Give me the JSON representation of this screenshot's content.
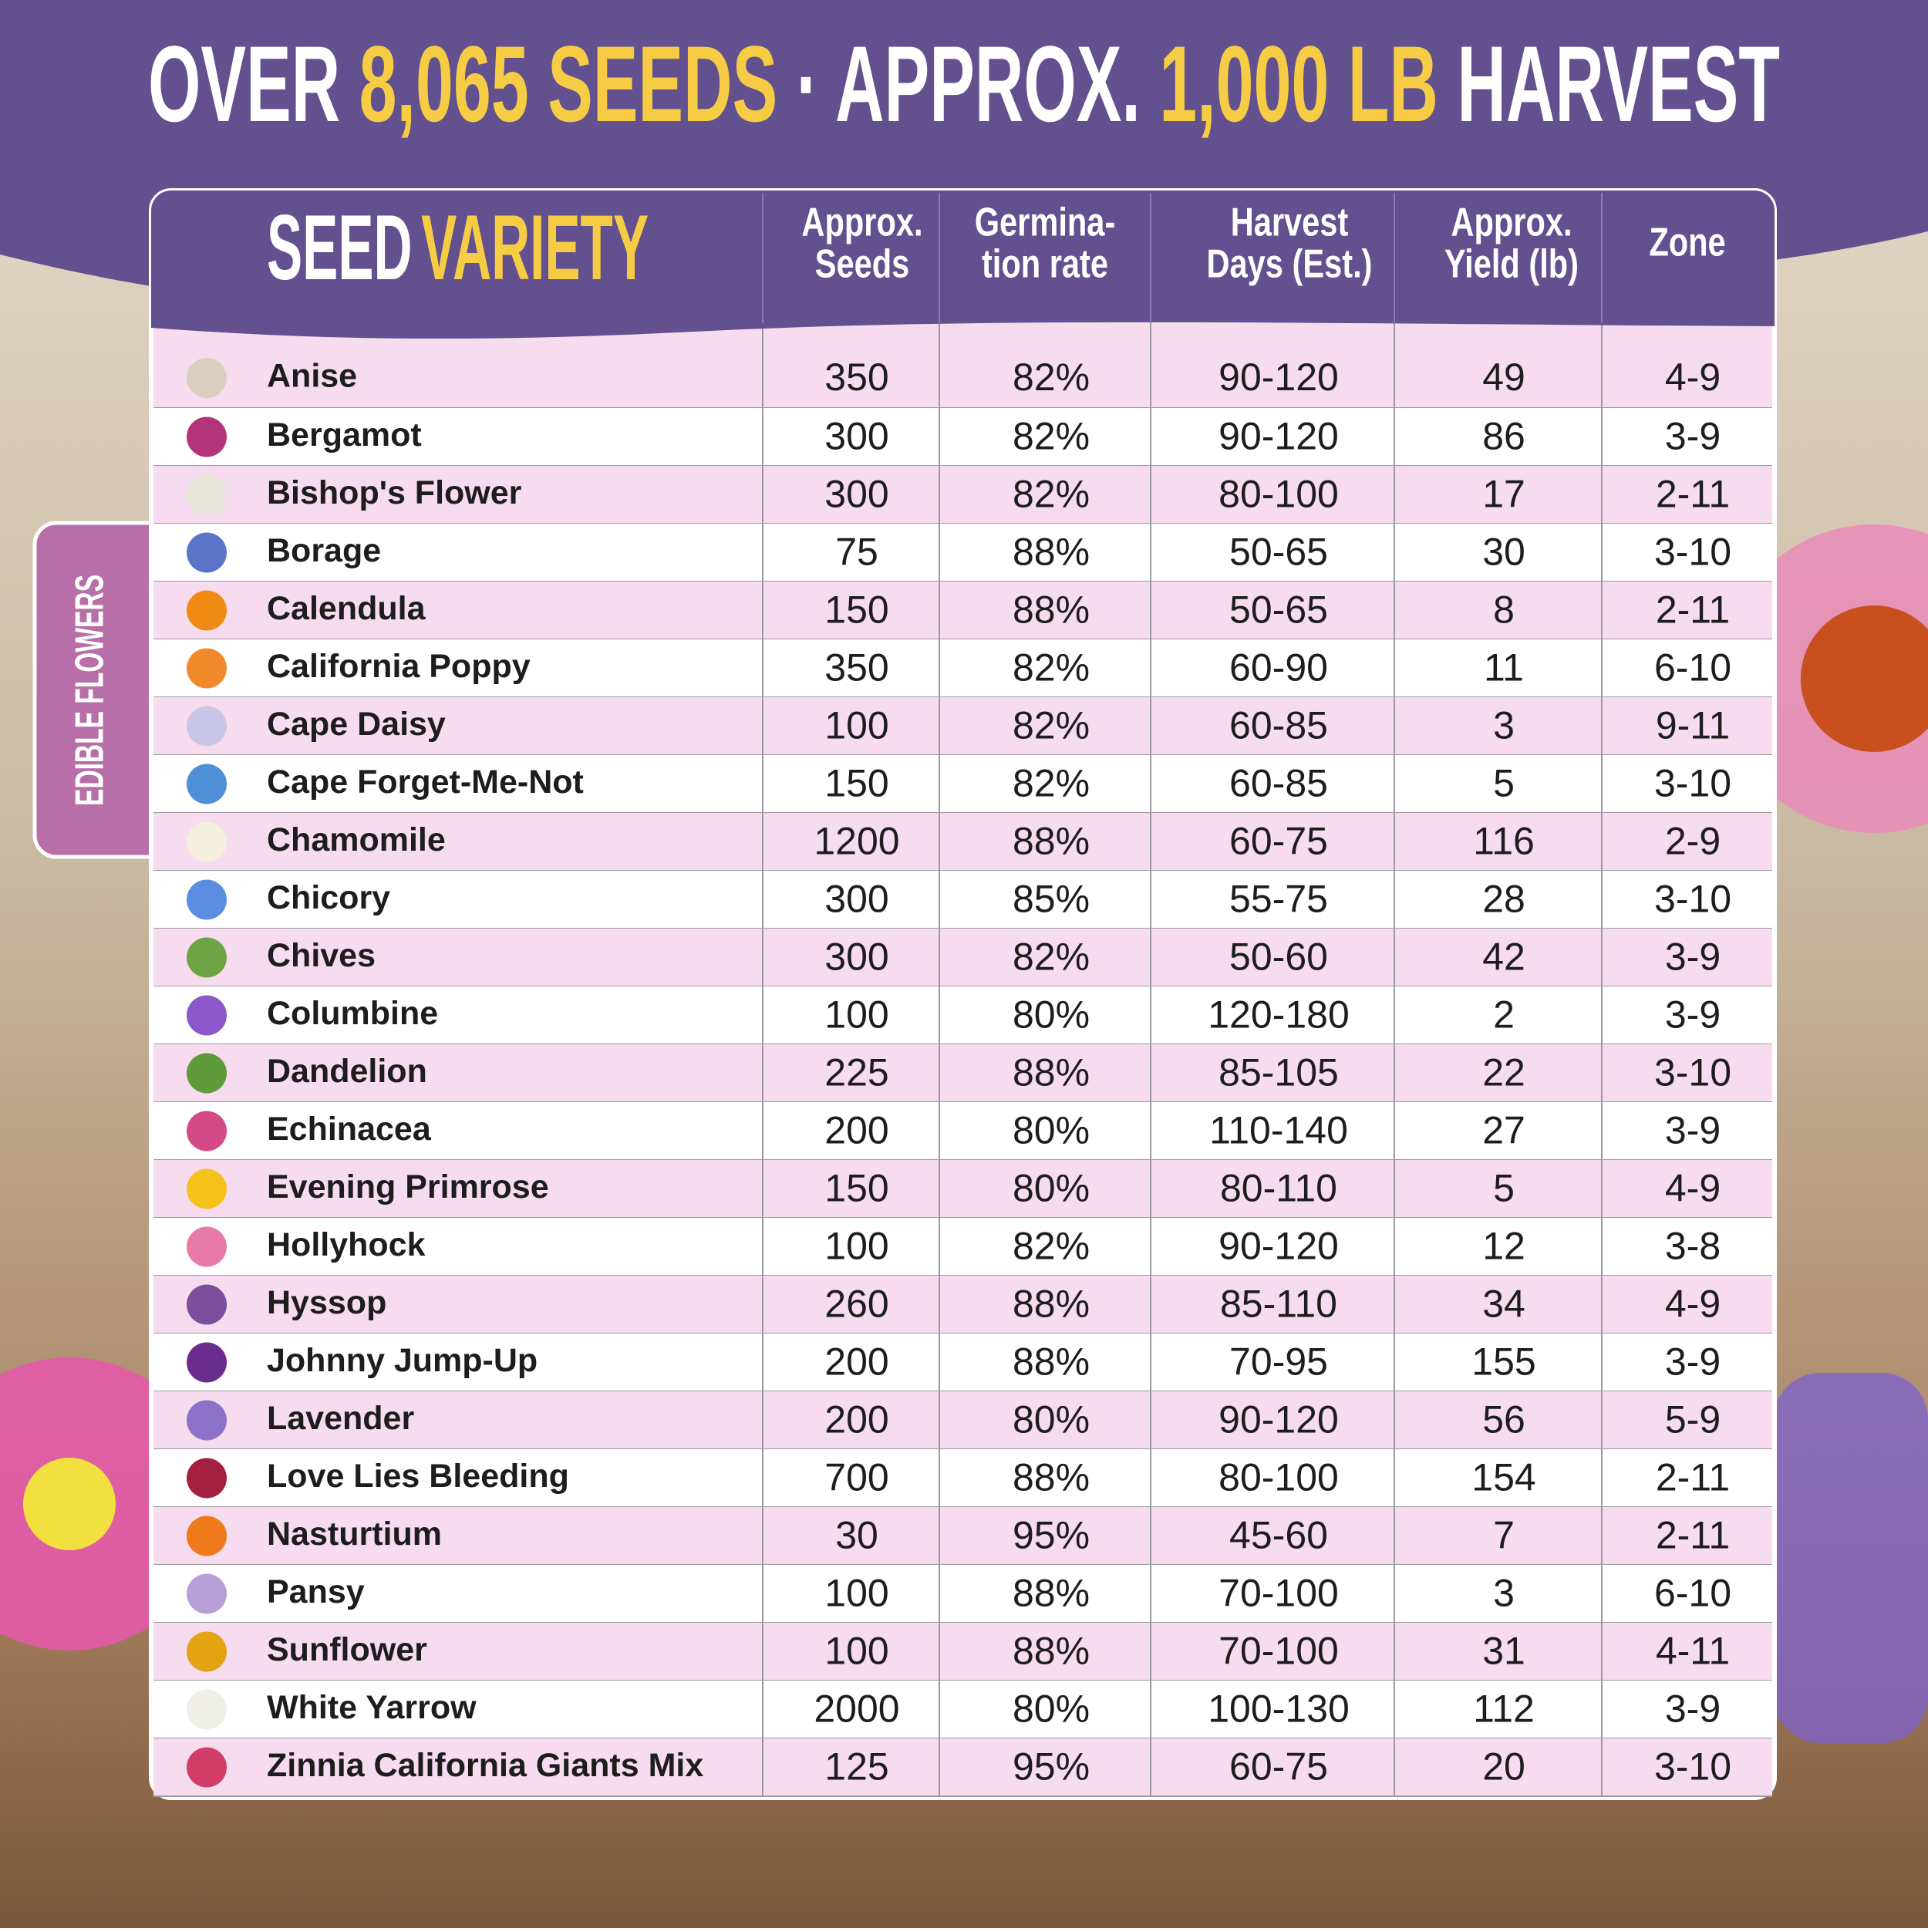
{
  "header": {
    "title": [
      "OVER",
      "8,065 SEEDS",
      "·",
      "APPROX.",
      "1,000 LB",
      "HARVEST"
    ]
  },
  "side_label": "EDIBLE FLOWERS",
  "table": {
    "heading": [
      "SEED",
      "VARIETY"
    ],
    "columns": [
      [
        "Approx.",
        "Seeds"
      ],
      [
        "Germina-",
        "tion rate"
      ],
      [
        "Harvest",
        "Days (Est.)"
      ],
      [
        "Approx.",
        "Yield (lb)"
      ],
      [
        "Zone"
      ]
    ],
    "rows": [
      [
        "Anise",
        "350",
        "82%",
        "90-120",
        "49",
        "4-9"
      ],
      [
        "Bergamot",
        "300",
        "82%",
        "90-120",
        "86",
        "3-9"
      ],
      [
        "Bishop's Flower",
        "300",
        "82%",
        "80-100",
        "17",
        "2-11"
      ],
      [
        "Borage",
        "75",
        "88%",
        "50-65",
        "30",
        "3-10"
      ],
      [
        "Calendula",
        "150",
        "88%",
        "50-65",
        "8",
        "2-11"
      ],
      [
        "California Poppy",
        "350",
        "82%",
        "60-90",
        "11",
        "6-10"
      ],
      [
        "Cape Daisy",
        "100",
        "82%",
        "60-85",
        "3",
        "9-11"
      ],
      [
        "Cape Forget-Me-Not",
        "150",
        "82%",
        "60-85",
        "5",
        "3-10"
      ],
      [
        "Chamomile",
        "1200",
        "88%",
        "60-75",
        "116",
        "2-9"
      ],
      [
        "Chicory",
        "300",
        "85%",
        "55-75",
        "28",
        "3-10"
      ],
      [
        "Chives",
        "300",
        "82%",
        "50-60",
        "42",
        "3-9"
      ],
      [
        "Columbine",
        "100",
        "80%",
        "120-180",
        "2",
        "3-9"
      ],
      [
        "Dandelion",
        "225",
        "88%",
        "85-105",
        "22",
        "3-10"
      ],
      [
        "Echinacea",
        "200",
        "80%",
        "110-140",
        "27",
        "3-9"
      ],
      [
        "Evening Primrose",
        "150",
        "80%",
        "80-110",
        "5",
        "4-9"
      ],
      [
        "Hollyhock",
        "100",
        "82%",
        "90-120",
        "12",
        "3-8"
      ],
      [
        "Hyssop",
        "260",
        "88%",
        "85-110",
        "34",
        "4-9"
      ],
      [
        "Johnny Jump-Up",
        "200",
        "88%",
        "70-95",
        "155",
        "3-9"
      ],
      [
        "Lavender",
        "200",
        "80%",
        "90-120",
        "56",
        "5-9"
      ],
      [
        "Love Lies Bleeding",
        "700",
        "88%",
        "80-100",
        "154",
        "2-11"
      ],
      [
        "Nasturtium",
        "30",
        "95%",
        "45-60",
        "7",
        "2-11"
      ],
      [
        "Pansy",
        "100",
        "88%",
        "70-100",
        "3",
        "6-10"
      ],
      [
        "Sunflower",
        "100",
        "88%",
        "70-100",
        "31",
        "4-11"
      ],
      [
        "White Yarrow",
        "2000",
        "80%",
        "100-130",
        "112",
        "3-9"
      ],
      [
        "Zinnia California Giants Mix",
        "125",
        "95%",
        "60-75",
        "20",
        "3-10"
      ]
    ]
  }
}
